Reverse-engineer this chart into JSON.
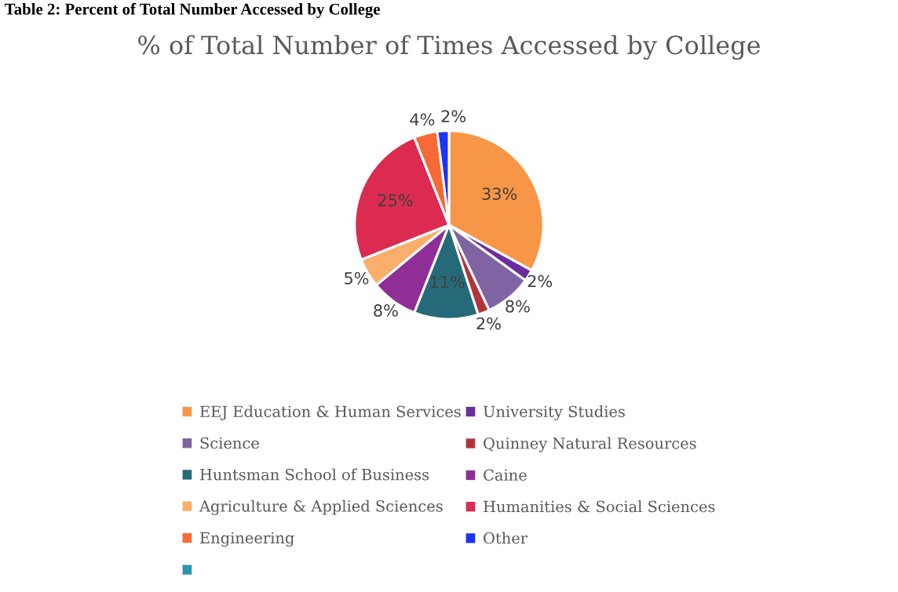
{
  "chart_data": {
    "type": "pie",
    "annotations": [
      "Table 2: Percent of Total Number Accessed by College"
    ],
    "title": "% of Total Number of Times Accessed by College",
    "categories": [
      "EEJ Education & Human Services",
      "University Studies",
      "Science",
      "Quinney Natural Resources",
      "Huntsman School of Business",
      "Caine",
      "Agriculture & Applied Sciences",
      "Humanities & Social Sciences",
      "Engineering",
      "Other",
      null
    ],
    "values": [
      33,
      2,
      8,
      2,
      11,
      8,
      5,
      25,
      4,
      2,
      0
    ],
    "value_labels": [
      "33%",
      "2%",
      "8%",
      "2%",
      "11%",
      "8%",
      "5%",
      "25%",
      "4%",
      "2%",
      null
    ],
    "colors": [
      "#f79646",
      "#6a2c9e",
      "#8064a2",
      "#b3333d",
      "#266a7a",
      "#8e2e96",
      "#f9ae6c",
      "#dc2b51",
      "#f76a35",
      "#1c34f5",
      "#2f94ad"
    ],
    "legend": "bottom"
  }
}
